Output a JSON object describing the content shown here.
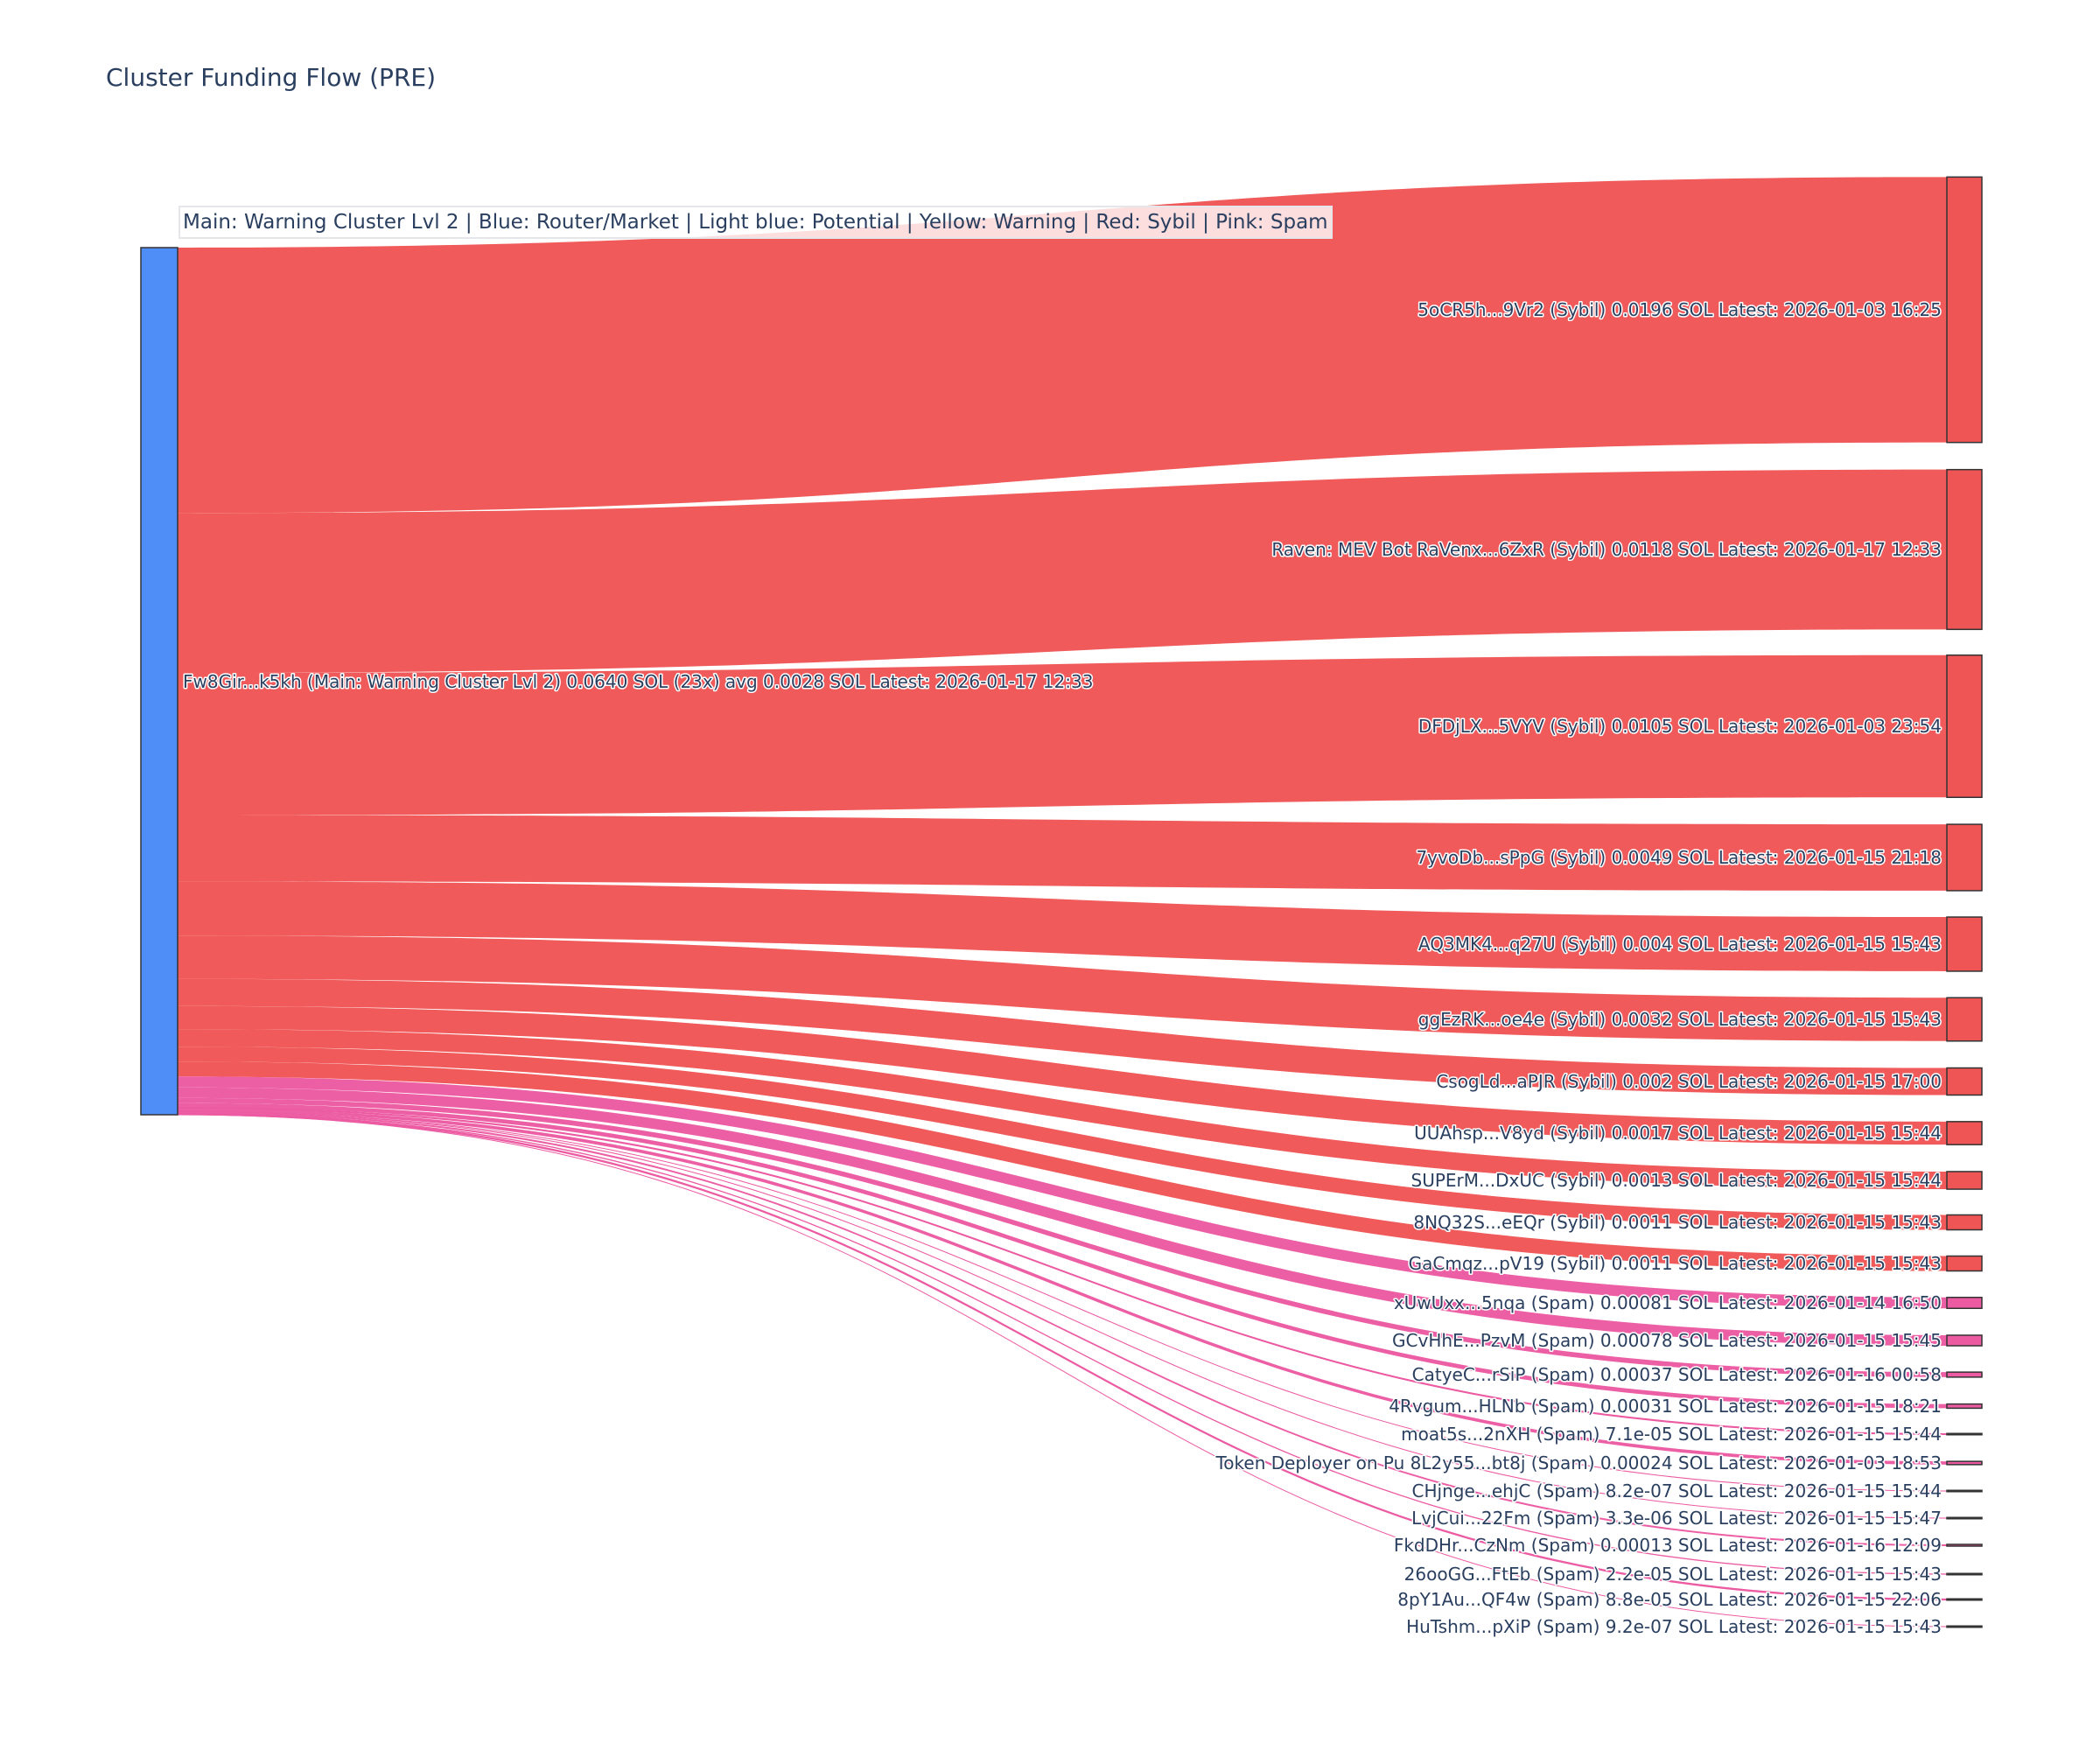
{
  "chart_data": {
    "type": "sankey",
    "title": "Cluster Funding Flow (PRE)",
    "legend_text": "Main: Warning Cluster Lvl 2  |  Blue: Router/Market | Light blue: Potential | Yellow: Warning | Red: Sybil | Pink: Spam",
    "colors": {
      "main": "#4f8ef7",
      "sybil": "#ef5555",
      "spam": "#ec5aa2",
      "text": "#2a3f5f"
    },
    "source": {
      "label": "Fw8Gir...k5kh (Main: Warning Cluster Lvl 2) 0.0640 SOL (23x) avg 0.0028 SOL Latest: 2026-01-17 12:33",
      "value": 0.064,
      "category": "main"
    },
    "targets": [
      {
        "label": "5oCR5h...9Vr2 (Sybil) 0.0196 SOL Latest: 2026-01-03 16:25",
        "value": 0.0196,
        "category": "sybil"
      },
      {
        "label": "Raven: MEV Bot RaVenx...6ZxR (Sybil) 0.0118 SOL Latest: 2026-01-17 12:33",
        "value": 0.0118,
        "category": "sybil"
      },
      {
        "label": "DFDjLX...5VYV (Sybil) 0.0105 SOL Latest: 2026-01-03 23:54",
        "value": 0.0105,
        "category": "sybil"
      },
      {
        "label": "7yvoDb...sPpG (Sybil) 0.0049 SOL Latest: 2026-01-15 21:18",
        "value": 0.0049,
        "category": "sybil"
      },
      {
        "label": "AQ3MK4...q27U (Sybil) 0.004 SOL Latest: 2026-01-15 15:43",
        "value": 0.004,
        "category": "sybil"
      },
      {
        "label": "ggEzRK...oe4e (Sybil) 0.0032 SOL Latest: 2026-01-15 15:43",
        "value": 0.0032,
        "category": "sybil"
      },
      {
        "label": "CsogLd...aPJR (Sybil) 0.002 SOL Latest: 2026-01-15 17:00",
        "value": 0.002,
        "category": "sybil"
      },
      {
        "label": "UUAhsp...V8yd (Sybil) 0.0017 SOL Latest: 2026-01-15 15:44",
        "value": 0.0017,
        "category": "sybil"
      },
      {
        "label": "SUPErM...DxUC (Sybil) 0.0013 SOL Latest: 2026-01-15 15:44",
        "value": 0.0013,
        "category": "sybil"
      },
      {
        "label": "8NQ32S...eEQr (Sybil) 0.0011 SOL Latest: 2026-01-15 15:43",
        "value": 0.0011,
        "category": "sybil"
      },
      {
        "label": "GaCmqz...pV19 (Sybil) 0.0011 SOL Latest: 2026-01-15 15:43",
        "value": 0.0011,
        "category": "sybil"
      },
      {
        "label": "xUwUxx...5nqa (Spam) 0.00081 SOL Latest: 2026-01-14 16:50",
        "value": 0.00081,
        "category": "spam"
      },
      {
        "label": "GCvHhE...PzvM (Spam) 0.00078 SOL Latest: 2026-01-15 15:45",
        "value": 0.00078,
        "category": "spam"
      },
      {
        "label": "CatyeC...rSiP (Spam) 0.00037 SOL Latest: 2026-01-16 00:58",
        "value": 0.00037,
        "category": "spam"
      },
      {
        "label": "4Rvgum...HLNb (Spam) 0.00031 SOL Latest: 2026-01-15 18:21",
        "value": 0.00031,
        "category": "spam"
      },
      {
        "label": "moat5s...2nXH (Spam) 7.1e-05 SOL Latest: 2026-01-15 15:44",
        "value": 7.1e-05,
        "category": "spam"
      },
      {
        "label": "Token Deployer on Pu 8L2y55...bt8j (Spam) 0.00024 SOL Latest: 2026-01-03 18:53",
        "value": 0.00024,
        "category": "spam"
      },
      {
        "label": "CHjnge...ehjC (Spam) 8.2e-07 SOL Latest: 2026-01-15 15:44",
        "value": 8.2e-07,
        "category": "spam"
      },
      {
        "label": "LvjCui...22Fm (Spam) 3.3e-06 SOL Latest: 2026-01-15 15:47",
        "value": 3.3e-06,
        "category": "spam"
      },
      {
        "label": "FkdDHr...CzNm (Spam) 0.00013 SOL Latest: 2026-01-16 12:09",
        "value": 0.00013,
        "category": "spam"
      },
      {
        "label": "26ooGG...FtEb (Spam) 2.2e-05 SOL Latest: 2026-01-15 15:43",
        "value": 2.2e-05,
        "category": "spam"
      },
      {
        "label": "8pY1Au...QF4w (Spam) 8.8e-05 SOL Latest: 2026-01-15 22:06",
        "value": 8.8e-05,
        "category": "spam"
      },
      {
        "label": "HuTshm...pXiP (Spam) 9.2e-07 SOL Latest: 2026-01-15 15:43",
        "value": 9.2e-07,
        "category": "spam"
      }
    ]
  }
}
